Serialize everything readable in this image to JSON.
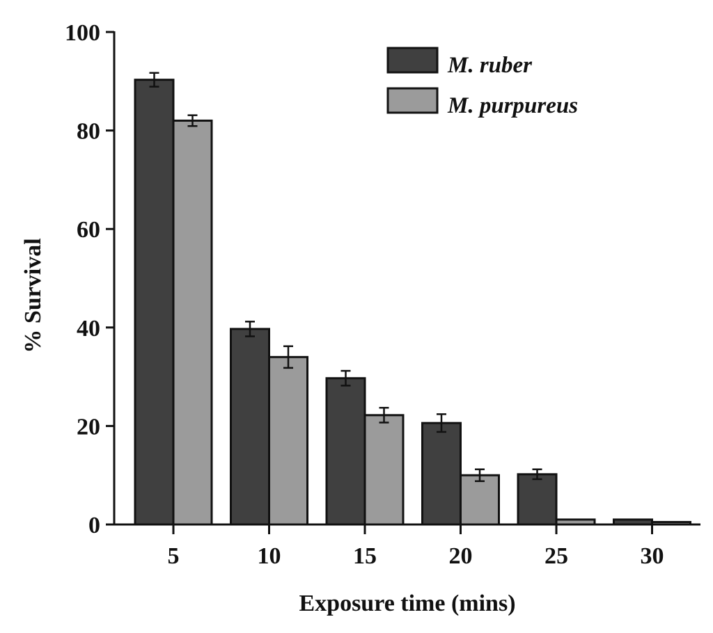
{
  "chart_data": {
    "type": "bar",
    "title": "",
    "xlabel": "Exposure time (mins)",
    "ylabel": "% Survival",
    "categories": [
      "5",
      "10",
      "15",
      "20",
      "25",
      "30"
    ],
    "series": [
      {
        "name": "M. ruber",
        "color": "#404040",
        "values": [
          90.3,
          39.7,
          29.7,
          20.6,
          10.2,
          1.0
        ],
        "errors": [
          1.4,
          1.5,
          1.5,
          1.8,
          1.0,
          0.2
        ]
      },
      {
        "name": "M. purpureus",
        "color": "#9b9b9b",
        "values": [
          82.0,
          34.0,
          22.2,
          10.0,
          1.0,
          0.5
        ],
        "errors": [
          1.1,
          2.2,
          1.5,
          1.2,
          0.2,
          0.1
        ]
      }
    ],
    "ylim": [
      0,
      100
    ],
    "yticks": [
      0,
      20,
      40,
      60,
      80,
      100
    ],
    "grid": false,
    "legend_position": "upper right",
    "error_bars": true
  },
  "legend": {
    "items": [
      {
        "label": "M. ruber",
        "color": "#404040"
      },
      {
        "label": "M. purpureus",
        "color": "#9b9b9b"
      }
    ]
  }
}
